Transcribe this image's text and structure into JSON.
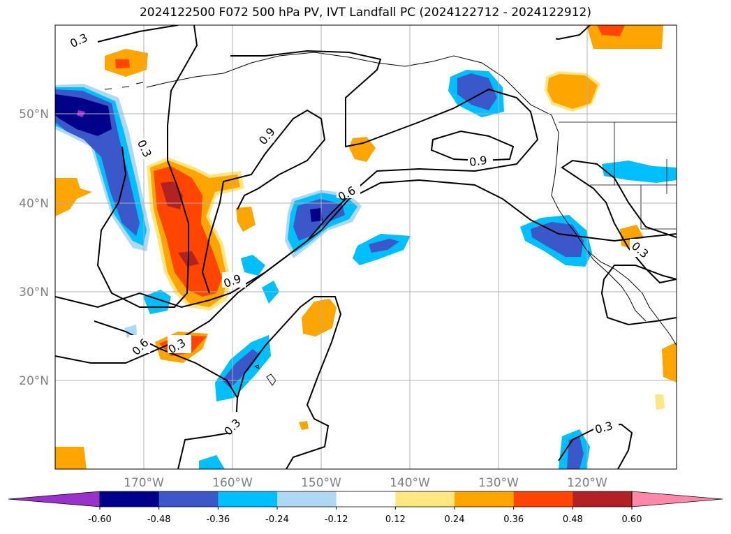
{
  "title": "2024122500 F072 500 hPa PV, IVT Landfall PC (2024122712 - 2024122912)",
  "map": {
    "projection": "plate carree",
    "lon_range": [
      "180°W",
      "110°W"
    ],
    "lat_range": [
      "10°N",
      "60°N"
    ],
    "gridlines": true,
    "lon_ticks": [
      "170°W",
      "160°W",
      "150°W",
      "140°W",
      "130°W",
      "120°W"
    ],
    "lat_ticks": [
      "20°N",
      "30°N",
      "40°N",
      "50°N"
    ],
    "contour_labels": [
      "0.3",
      "0.3",
      "0.3",
      "0.3",
      "0.3",
      "0.3",
      "0.9",
      "0.9",
      "0.9",
      "0.6",
      "0.6"
    ]
  },
  "colorbar": {
    "orientation": "horizontal",
    "extend": "both",
    "levels": [
      "-0.60",
      "-0.48",
      "-0.36",
      "-0.24",
      "-0.12",
      "0.12",
      "0.24",
      "0.36",
      "0.48",
      "0.60"
    ],
    "colors": [
      "#9932cc",
      "#00008b",
      "#3a58c9",
      "#00bfff",
      "#add8f6",
      "#ffffff",
      "#ffe680",
      "#ffa500",
      "#ff4500",
      "#b22222",
      "#ff88aa"
    ]
  },
  "colors": {
    "neg_extreme": "#9932cc",
    "neg_strong": "#00008b",
    "neg_mid": "#3a58c9",
    "neg_weak": "#00bfff",
    "neg_faint": "#add8f6",
    "pos_faint": "#ffe680",
    "pos_weak": "#ffa500",
    "pos_mid": "#ff4500",
    "pos_strong": "#b22222",
    "pos_extreme": "#ff88aa"
  }
}
